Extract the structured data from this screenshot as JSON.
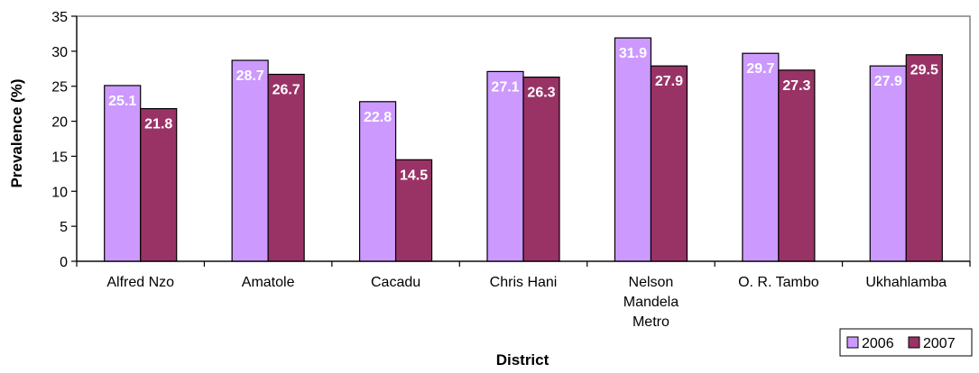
{
  "chart_data": {
    "type": "bar",
    "title": "",
    "xlabel": "District",
    "ylabel": "Prevalence (%)",
    "ylim": [
      0,
      35
    ],
    "yticks": [
      0,
      5,
      10,
      15,
      20,
      25,
      30,
      35
    ],
    "grid": false,
    "legend_position": "bottom-right",
    "categories": [
      [
        "Alfred Nzo"
      ],
      [
        "Amatole"
      ],
      [
        "Cacadu"
      ],
      [
        "Chris Hani"
      ],
      [
        "Nelson",
        "Mandela",
        "Metro"
      ],
      [
        "O. R. Tambo"
      ],
      [
        "Ukhahlamba"
      ]
    ],
    "series": [
      {
        "name": "2006",
        "color": "#cc99ff",
        "values": [
          25.1,
          28.7,
          22.8,
          27.1,
          31.9,
          29.7,
          27.9
        ]
      },
      {
        "name": "2007",
        "color": "#993366",
        "values": [
          21.8,
          26.7,
          14.5,
          26.3,
          27.9,
          27.3,
          29.5
        ]
      }
    ]
  }
}
